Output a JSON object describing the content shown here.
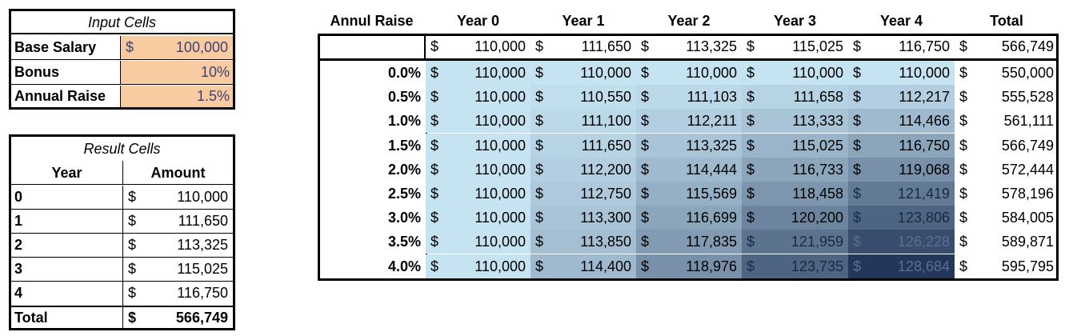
{
  "input": {
    "title": "Input Cells",
    "base_salary_label": "Base Salary",
    "base_salary_currency": "$",
    "base_salary_value": "100,000",
    "bonus_label": "Bonus",
    "bonus_value": "10%",
    "raise_label": "Annual Raise",
    "raise_value": "1.5%",
    "fill_color": "#F8CBA0",
    "value_color": "#3F3F76"
  },
  "result": {
    "title": "Result Cells",
    "col_year": "Year",
    "col_amount": "Amount",
    "rows": [
      {
        "year": "0",
        "cur": "$",
        "amount": "110,000"
      },
      {
        "year": "1",
        "cur": "$",
        "amount": "111,650"
      },
      {
        "year": "2",
        "cur": "$",
        "amount": "113,325"
      },
      {
        "year": "3",
        "cur": "$",
        "amount": "115,025"
      },
      {
        "year": "4",
        "cur": "$",
        "amount": "116,750"
      }
    ],
    "total_label": "Total",
    "total_cur": "$",
    "total_amount": "566,749"
  },
  "sensitivity": {
    "corner_label": "Annul Raise",
    "headers": [
      "Year 0",
      "Year 1",
      "Year 2",
      "Year 3",
      "Year 4",
      "Total"
    ],
    "currency": "$",
    "top_row": [
      "110,000",
      "111,650",
      "113,325",
      "115,025",
      "116,750",
      "566,749"
    ],
    "rows": [
      {
        "rate": "0.0%",
        "values": [
          "110,000",
          "110,000",
          "110,000",
          "110,000",
          "110,000",
          "550,000"
        ],
        "shades": [
          0.0,
          0.0,
          0.0,
          0.0,
          0.0
        ]
      },
      {
        "rate": "0.5%",
        "values": [
          "110,000",
          "110,550",
          "111,103",
          "111,658",
          "112,217",
          "555,528"
        ],
        "shades": [
          0.0,
          0.03,
          0.06,
          0.09,
          0.12
        ]
      },
      {
        "rate": "1.0%",
        "values": [
          "110,000",
          "111,100",
          "112,211",
          "113,333",
          "114,466",
          "561,111"
        ],
        "shades": [
          0.0,
          0.06,
          0.12,
          0.18,
          0.24
        ]
      },
      {
        "rate": "1.5%",
        "values": [
          "110,000",
          "111,650",
          "113,325",
          "115,025",
          "116,750",
          "566,749"
        ],
        "shades": [
          0.0,
          0.09,
          0.18,
          0.27,
          0.36
        ]
      },
      {
        "rate": "2.0%",
        "values": [
          "110,000",
          "112,200",
          "114,444",
          "116,733",
          "119,068",
          "572,444"
        ],
        "shades": [
          0.0,
          0.12,
          0.24,
          0.36,
          0.48
        ]
      },
      {
        "rate": "2.5%",
        "values": [
          "110,000",
          "112,750",
          "115,569",
          "118,458",
          "121,419",
          "578,196"
        ],
        "shades": [
          0.0,
          0.15,
          0.3,
          0.45,
          0.61
        ]
      },
      {
        "rate": "3.0%",
        "values": [
          "110,000",
          "113,300",
          "116,699",
          "120,200",
          "123,806",
          "584,005"
        ],
        "shades": [
          0.0,
          0.18,
          0.36,
          0.55,
          0.74
        ]
      },
      {
        "rate": "3.5%",
        "values": [
          "110,000",
          "113,850",
          "117,835",
          "121,959",
          "126,228",
          "589,871"
        ],
        "shades": [
          0.0,
          0.21,
          0.42,
          0.65,
          0.87
        ]
      },
      {
        "rate": "4.0%",
        "values": [
          "110,000",
          "114,400",
          "118,976",
          "123,735",
          "128,684",
          "595,795"
        ],
        "shades": [
          0.0,
          0.24,
          0.48,
          0.74,
          1.0
        ]
      }
    ],
    "color_low": "#C6E3F2",
    "color_high": "#23375A"
  }
}
